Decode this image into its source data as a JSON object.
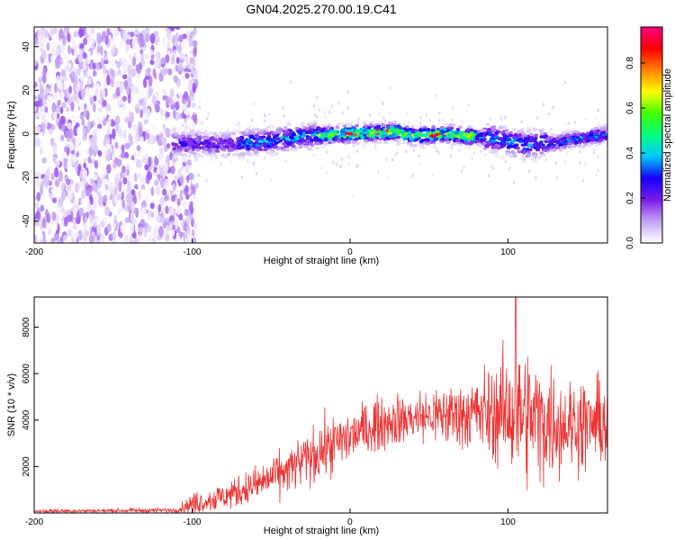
{
  "title": "GN04.2025.270.00.19.C41",
  "chart_data": [
    {
      "type": "heatmap",
      "xlabel": "Height of straight line (km)",
      "ylabel": "Frequency (Hz)",
      "xlim": [
        -200,
        163
      ],
      "ylim": [
        -50,
        49
      ],
      "xticks": [
        "-200",
        "-100",
        "0",
        "100"
      ],
      "yticks": [
        "40",
        "20",
        "0",
        "-20",
        "-40"
      ],
      "colorbar": {
        "label": "Normalized spectral amplitude",
        "range": [
          0,
          0.96
        ],
        "ticks": [
          "0.0",
          "0.2",
          "0.4",
          "0.6",
          "0.8"
        ],
        "colors": [
          "#ffffff",
          "#c4a4f4",
          "#7a1be8",
          "#1400ff",
          "#00c8ff",
          "#00ff80",
          "#40ff00",
          "#ffff00",
          "#ff8000",
          "#ff0000",
          "#ff0080"
        ]
      },
      "signal_band": {
        "center_frequency": [
          [
            -115,
            -4
          ],
          [
            -80,
            -5
          ],
          [
            -50,
            -3
          ],
          [
            -30,
            -1
          ],
          [
            0,
            0
          ],
          [
            30,
            1
          ],
          [
            40,
            -1
          ],
          [
            60,
            0
          ],
          [
            90,
            -2
          ],
          [
            110,
            -5
          ],
          [
            130,
            -4
          ],
          [
            163,
            0
          ]
        ],
        "max_amplitude_near": [
          [
            0,
            0.9
          ],
          [
            20,
            0.95
          ],
          [
            55,
            0.9
          ]
        ]
      },
      "noise_region_x": [
        -200,
        -105
      ]
    },
    {
      "type": "line",
      "xlabel": "Height of straight line (km)",
      "ylabel": "SNR (10 * v/v)",
      "xlim": [
        -200,
        163
      ],
      "ylim": [
        0,
        9300
      ],
      "xticks": [
        "-200",
        "-100",
        "0",
        "100"
      ],
      "yticks": [
        "8000",
        "6000",
        "4000",
        "2000"
      ],
      "color": "#ee3333",
      "envelope": {
        "x": [
          -200,
          -150,
          -110,
          -100,
          -80,
          -60,
          -40,
          -20,
          0,
          20,
          40,
          60,
          80,
          100,
          110,
          120,
          140,
          163
        ],
        "mid": [
          80,
          100,
          120,
          400,
          700,
          1200,
          1800,
          2600,
          3300,
          3900,
          4100,
          4200,
          4300,
          4300,
          4200,
          4000,
          3800,
          3900
        ],
        "amp": [
          80,
          80,
          100,
          400,
          550,
          700,
          900,
          1100,
          1100,
          1000,
          1000,
          1200,
          1500,
          2200,
          2600,
          2400,
          1800,
          1700
        ]
      },
      "peak": {
        "x": 105,
        "y": 9300
      }
    }
  ]
}
